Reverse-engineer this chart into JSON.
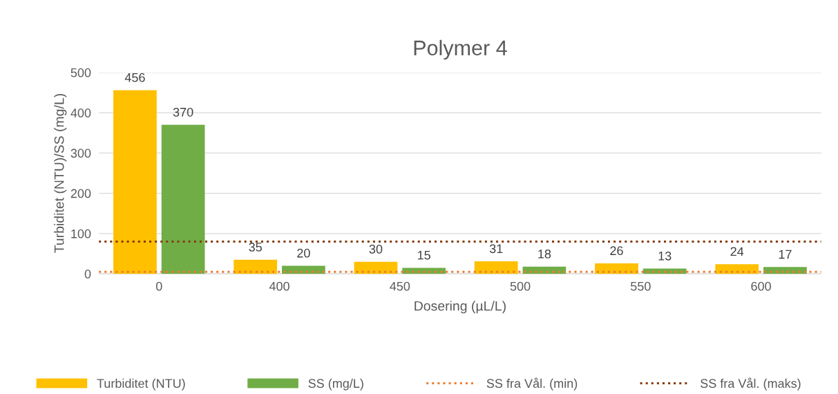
{
  "chart_data": {
    "type": "bar",
    "title": "Polymer 4",
    "xlabel": "Dosering (µL/L)",
    "ylabel": "Turbiditet (NTU)/SS (mg/L)",
    "categories": [
      "0",
      "400",
      "450",
      "500",
      "550",
      "600"
    ],
    "series": [
      {
        "name": "Turbiditet (NTU)",
        "color": "#ffc000",
        "values": [
          456,
          35,
          30,
          31,
          26,
          24
        ]
      },
      {
        "name": "SS (mg/L)",
        "color": "#70ad47",
        "values": [
          370,
          20,
          15,
          18,
          13,
          17
        ]
      }
    ],
    "ref_lines": [
      {
        "axis": "y",
        "value": 5,
        "label": "SS fra Vål. (min)",
        "color": "#ed7d31",
        "line_style": "dotted"
      },
      {
        "axis": "y",
        "value": 80,
        "label": "SS fra Vål. (maks)",
        "color": "#843c0c",
        "line_style": "dotted"
      }
    ],
    "ylim": [
      0,
      500
    ],
    "yticks": [
      0,
      100,
      200,
      300,
      400,
      500
    ],
    "grid": "y",
    "legend": "bottom",
    "data_labels": true
  }
}
